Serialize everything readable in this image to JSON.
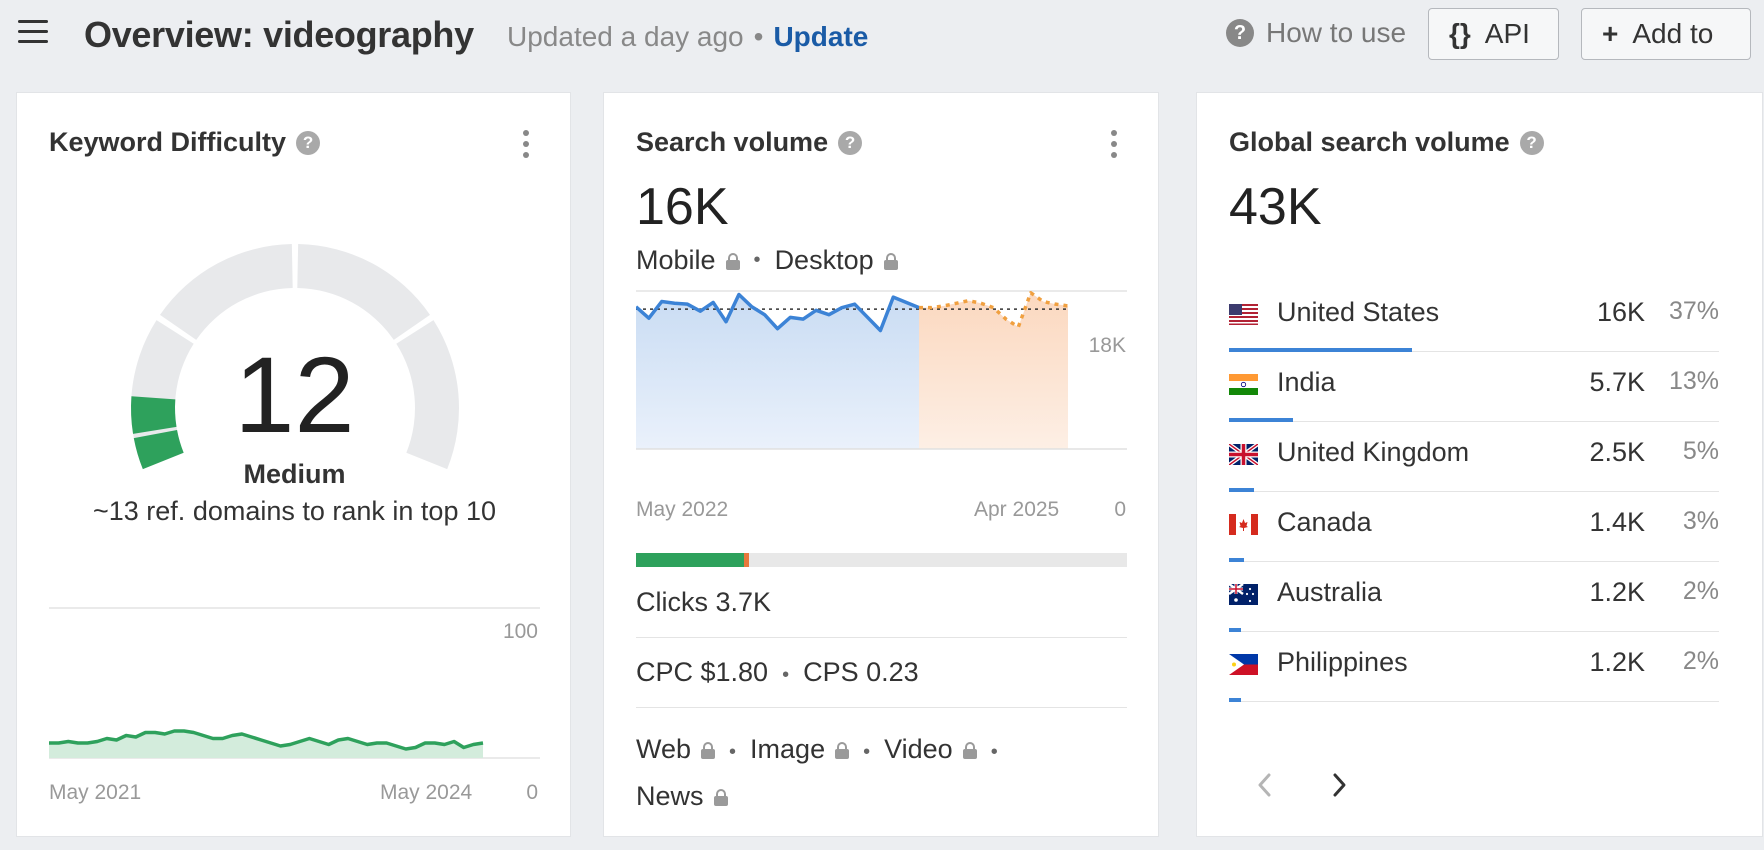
{
  "header": {
    "title": "Overview: videography",
    "updated": "Updated a day ago",
    "update_link": "Update",
    "how_to_use": "How to use",
    "api_label": "API",
    "add_label": "Add to"
  },
  "kd_card": {
    "title": "Keyword Difficulty",
    "value": "12",
    "level": "Medium",
    "description": "~13 ref. domains to rank in top 10",
    "gauge_value": 12,
    "gauge_max": 100,
    "chart_ymax": "100",
    "chart_ymin": "0",
    "chart_x_start": "May 2021",
    "chart_x_end": "May 2024",
    "accent_color": "#2ea15c"
  },
  "volume_card": {
    "title": "Search volume",
    "value": "16K",
    "mobile_label": "Mobile",
    "desktop_label": "Desktop",
    "chart_ymax": "18K",
    "chart_ymin": "0",
    "chart_x_start": "May 2022",
    "chart_x_end": "Apr 2025",
    "clicks_label": "Clicks 3.7K",
    "cpc_label": "CPC $1.80",
    "cps_label": "CPS 0.23",
    "serp_web": "Web",
    "serp_image": "Image",
    "serp_video": "Video",
    "serp_news": "News",
    "clicks_organic_fraction": 0.22,
    "clicks_paid_fraction": 0.01,
    "history_color": "#3c83d6",
    "forecast_color": "#f0a040"
  },
  "global_card": {
    "title": "Global search volume",
    "value": "43K",
    "countries": [
      {
        "name": "United States",
        "volume": "16K",
        "pct": "37%",
        "share": 0.37,
        "flag": "us"
      },
      {
        "name": "India",
        "volume": "5.7K",
        "pct": "13%",
        "share": 0.13,
        "flag": "in"
      },
      {
        "name": "United Kingdom",
        "volume": "2.5K",
        "pct": "5%",
        "share": 0.05,
        "flag": "gb"
      },
      {
        "name": "Canada",
        "volume": "1.4K",
        "pct": "3%",
        "share": 0.03,
        "flag": "ca"
      },
      {
        "name": "Australia",
        "volume": "1.2K",
        "pct": "2%",
        "share": 0.02,
        "flag": "au"
      },
      {
        "name": "Philippines",
        "volume": "1.2K",
        "pct": "2%",
        "share": 0.02,
        "flag": "ph"
      }
    ]
  },
  "chart_data": [
    {
      "type": "area",
      "title": "Keyword Difficulty",
      "x_range": [
        "May 2021",
        "May 2024"
      ],
      "ylim": [
        0,
        100
      ],
      "series": [
        {
          "values": [
            10,
            10,
            11,
            10,
            10,
            11,
            13,
            12,
            15,
            14,
            17,
            17,
            16,
            18,
            18,
            17,
            15,
            13,
            13,
            15,
            16,
            14,
            12,
            10,
            8,
            9,
            11,
            13,
            11,
            9,
            12,
            13,
            11,
            9,
            10,
            10,
            8,
            6,
            7,
            10,
            10,
            9,
            11,
            7,
            9,
            10
          ]
        }
      ]
    },
    {
      "type": "area",
      "title": "Search volume",
      "x_range": [
        "May 2022",
        "Apr 2025"
      ],
      "ylim": [
        0,
        18000
      ],
      "series": [
        {
          "name": "history",
          "values": [
            16200,
            14900,
            16800,
            16600,
            16500,
            15700,
            16700,
            14500,
            17600,
            16200,
            15300,
            13700,
            15000,
            14800,
            15800,
            15300,
            16100,
            16500,
            15000,
            13500,
            17300,
            16700,
            16100
          ]
        },
        {
          "name": "forecast",
          "values": [
            16100,
            16300,
            16600,
            16900,
            16600,
            16100,
            14800,
            13900,
            17800,
            16800,
            16500,
            16300
          ]
        }
      ]
    }
  ]
}
